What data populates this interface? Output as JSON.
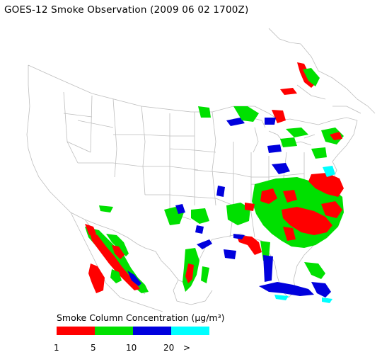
{
  "title": "GOES-12 Smoke Observation (2009 06 02  1700Z)",
  "legend": {
    "title": "Smoke Column Concentration (μg/m³)",
    "colors": [
      "#ff0000",
      "#00e000",
      "#0000dd",
      "#00ffff"
    ],
    "ticks": [
      "1",
      "5",
      "10",
      "20",
      ">"
    ]
  },
  "colors": {
    "background": "#ffffff",
    "borders": "#bdbdbd"
  }
}
